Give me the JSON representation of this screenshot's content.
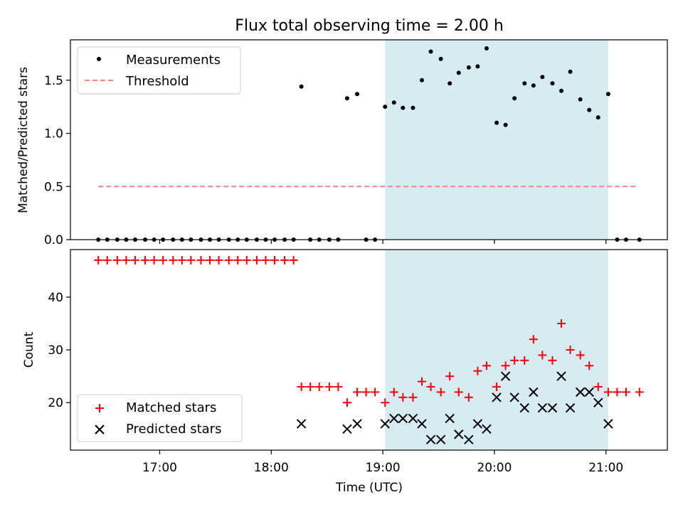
{
  "chart_data": [
    {
      "type": "scatter",
      "title": "Flux total observing time = 2.00 h",
      "ylabel": "Matched/Predicted stars",
      "xlim": [
        16.2,
        21.55
      ],
      "ylim": [
        0,
        1.88
      ],
      "x_ticks": [
        17,
        18,
        19,
        20,
        21
      ],
      "y_ticks": [
        0.0,
        0.5,
        1.0,
        1.5
      ],
      "y_tick_labels": [
        "0.0",
        "0.5",
        "1.0",
        "1.5"
      ],
      "shaded_span": [
        19.02,
        21.02
      ],
      "legend": {
        "position": "top-left",
        "entries": [
          "Measurements",
          "Threshold"
        ]
      },
      "threshold": {
        "name": "Threshold",
        "y": 0.5,
        "x_range": [
          16.45,
          21.27
        ],
        "color": "#ff8080"
      },
      "series": [
        {
          "name": "Measurements",
          "color": "#000000",
          "x": [
            16.45,
            16.53,
            16.62,
            16.7,
            16.78,
            16.87,
            16.95,
            17.03,
            17.12,
            17.2,
            17.28,
            17.37,
            17.45,
            17.53,
            17.62,
            17.7,
            17.78,
            17.87,
            17.95,
            18.03,
            18.12,
            18.2,
            18.27,
            18.35,
            18.43,
            18.52,
            18.6,
            18.68,
            18.77,
            18.85,
            18.93,
            19.02,
            19.1,
            19.18,
            19.27,
            19.35,
            19.43,
            19.52,
            19.6,
            19.68,
            19.77,
            19.85,
            19.93,
            20.02,
            20.1,
            20.18,
            20.27,
            20.35,
            20.43,
            20.52,
            20.6,
            20.68,
            20.77,
            20.85,
            20.93,
            21.02,
            21.1,
            21.18,
            21.3
          ],
          "y": [
            0,
            0,
            0,
            0,
            0,
            0,
            0,
            0,
            0,
            0,
            0,
            0,
            0,
            0,
            0,
            0,
            0,
            0,
            0,
            0,
            0,
            0,
            1.44,
            0,
            0,
            0,
            0,
            1.33,
            1.37,
            0,
            0,
            1.25,
            1.29,
            1.24,
            1.24,
            1.5,
            1.77,
            1.7,
            1.47,
            1.57,
            1.62,
            1.63,
            1.8,
            1.1,
            1.08,
            1.33,
            1.47,
            1.45,
            1.53,
            1.47,
            1.4,
            1.58,
            1.32,
            1.22,
            1.15,
            1.37,
            0,
            0,
            0
          ]
        }
      ]
    },
    {
      "type": "scatter",
      "xlabel": "Time (UTC)",
      "ylabel": "Count",
      "xlim": [
        16.2,
        21.55
      ],
      "ylim": [
        11,
        49
      ],
      "x_ticks": [
        17,
        18,
        19,
        20,
        21
      ],
      "x_tick_labels": [
        "17:00",
        "18:00",
        "19:00",
        "20:00",
        "21:00"
      ],
      "y_ticks": [
        20,
        30,
        40
      ],
      "y_tick_labels": [
        "20",
        "30",
        "40"
      ],
      "shaded_span": [
        19.02,
        21.02
      ],
      "legend": {
        "position": "bottom-left",
        "entries": [
          "Matched stars",
          "Predicted stars"
        ]
      },
      "series": [
        {
          "name": "Matched stars",
          "marker": "plus",
          "color": "#ff0000",
          "x": [
            16.45,
            16.53,
            16.62,
            16.7,
            16.78,
            16.87,
            16.95,
            17.03,
            17.12,
            17.2,
            17.28,
            17.37,
            17.45,
            17.53,
            17.62,
            17.7,
            17.78,
            17.87,
            17.95,
            18.03,
            18.12,
            18.2,
            18.27,
            18.35,
            18.43,
            18.52,
            18.6,
            18.68,
            18.77,
            18.85,
            18.93,
            19.02,
            19.1,
            19.18,
            19.27,
            19.35,
            19.43,
            19.52,
            19.6,
            19.68,
            19.77,
            19.85,
            19.93,
            20.02,
            20.1,
            20.18,
            20.27,
            20.35,
            20.43,
            20.52,
            20.6,
            20.68,
            20.77,
            20.85,
            20.93,
            21.02,
            21.1,
            21.18,
            21.3
          ],
          "y": [
            47,
            47,
            47,
            47,
            47,
            47,
            47,
            47,
            47,
            47,
            47,
            47,
            47,
            47,
            47,
            47,
            47,
            47,
            47,
            47,
            47,
            47,
            23,
            23,
            23,
            23,
            23,
            20,
            22,
            22,
            22,
            20,
            22,
            21,
            21,
            24,
            23,
            22,
            25,
            22,
            21,
            26,
            27,
            23,
            27,
            28,
            28,
            32,
            29,
            28,
            35,
            30,
            29,
            27,
            23,
            22,
            22,
            22,
            22
          ]
        },
        {
          "name": "Predicted stars",
          "marker": "x",
          "color": "#000000",
          "x": [
            18.27,
            18.68,
            18.77,
            19.02,
            19.1,
            19.18,
            19.27,
            19.35,
            19.43,
            19.52,
            19.6,
            19.68,
            19.77,
            19.85,
            19.93,
            20.02,
            20.1,
            20.18,
            20.27,
            20.35,
            20.43,
            20.52,
            20.6,
            20.68,
            20.77,
            20.85,
            20.93,
            21.02
          ],
          "y": [
            16,
            15,
            16,
            16,
            17,
            17,
            17,
            16,
            13,
            13,
            17,
            14,
            13,
            16,
            15,
            21,
            25,
            21,
            19,
            22,
            19,
            19,
            25,
            19,
            22,
            22,
            20,
            16
          ]
        }
      ]
    }
  ]
}
